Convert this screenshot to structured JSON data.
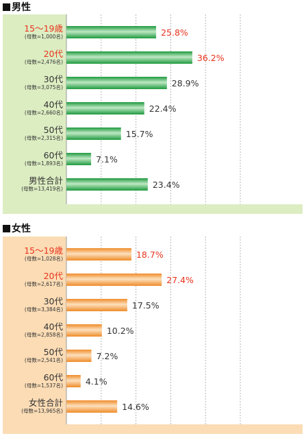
{
  "colors": {
    "male_panel_left": "#dcedc2",
    "male_panel_bg": "#ffffff",
    "male_bar_dark": "#1e9a3e",
    "male_bar_light": "#bfe8c4",
    "female_panel_left": "#fbdcb5",
    "female_bar_dark": "#ef8c2a",
    "female_bar_light": "#fde0bc",
    "highlight": "#e8331c",
    "text": "#333333"
  },
  "chart_data": [
    {
      "type": "bar",
      "orientation": "horizontal",
      "title": "男性",
      "xlim": [
        0,
        50
      ],
      "grid": true,
      "categories": [
        "15〜19歳",
        "20代",
        "30代",
        "40代",
        "50代",
        "60代",
        "男性合計"
      ],
      "sublabels": [
        "(母数=1,000名)",
        "(母数=2,476名)",
        "(母数=3,075名)",
        "(母数=2,660名)",
        "(母数=2,315名)",
        "(母数=1,893名)",
        "(母数=13,419名)"
      ],
      "values": [
        25.8,
        36.2,
        28.9,
        22.4,
        15.7,
        7.1,
        23.4
      ],
      "value_labels": [
        "25.8%",
        "36.2%",
        "28.9%",
        "22.4%",
        "15.7%",
        "7.1%",
        "23.4%"
      ],
      "highlighted": [
        true,
        true,
        false,
        false,
        false,
        false,
        false
      ]
    },
    {
      "type": "bar",
      "orientation": "horizontal",
      "title": "女性",
      "xlim": [
        0,
        50
      ],
      "grid": true,
      "categories": [
        "15〜19歳",
        "20代",
        "30代",
        "40代",
        "50代",
        "60代",
        "女性合計"
      ],
      "sublabels": [
        "(母数=1,028名)",
        "(母数=2,617名)",
        "(母数=3,384名)",
        "(母数=2,858名)",
        "(母数=2,541名)",
        "(母数=1,537名)",
        "(母数=13,965名)"
      ],
      "values": [
        18.7,
        27.4,
        17.5,
        10.2,
        7.2,
        4.1,
        14.6
      ],
      "value_labels": [
        "18.7%",
        "27.4%",
        "17.5%",
        "10.2%",
        "7.2%",
        "4.1%",
        "14.6%"
      ],
      "highlighted": [
        true,
        true,
        false,
        false,
        false,
        false,
        false
      ]
    }
  ]
}
